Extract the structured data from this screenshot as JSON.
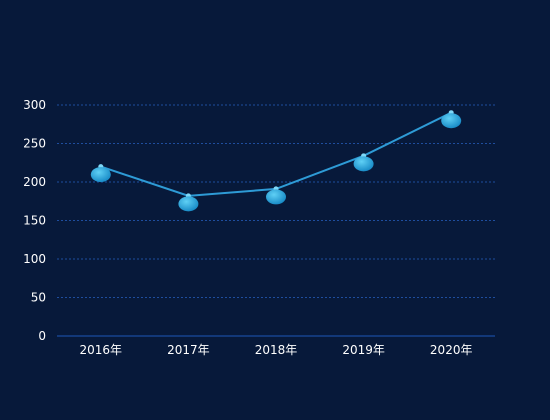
{
  "chart_data": {
    "type": "line",
    "categories": [
      "2016年",
      "2017年",
      "2018年",
      "2019年",
      "2020年"
    ],
    "series": [
      {
        "values": [
          220,
          182,
          191,
          234,
          290
        ]
      }
    ],
    "ylim": [
      0,
      300
    ],
    "yticks": [
      0,
      50,
      100,
      150,
      200,
      250,
      300
    ],
    "grid": true,
    "colors": {
      "background": "#07193a",
      "line": "#2e9bd6",
      "marker": "#22a8e0",
      "marker_highlight": "#7fd8f7",
      "grid": "#1e4d9e",
      "axis": "#1d56b8",
      "text": "#ffffff"
    }
  }
}
